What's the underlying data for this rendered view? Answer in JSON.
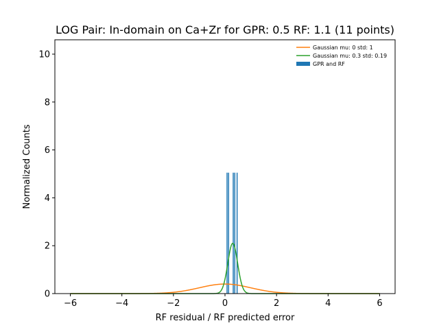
{
  "chart_data": {
    "type": "histogram",
    "title": "LOG Pair: In-domain on Ca+Zr for GPR: 0.5 RF: 1.1 (11 points)",
    "xlabel": "RF residual / RF predicted error",
    "ylabel": "Normalized Counts",
    "xlim": [
      -6.6,
      6.6
    ],
    "ylim": [
      0,
      10.6
    ],
    "xticks": [
      -6,
      -4,
      -2,
      0,
      2,
      4,
      6
    ],
    "yticks": [
      0,
      2,
      4,
      6,
      8,
      10
    ],
    "grid": false,
    "legend_position": "top-right",
    "histogram": {
      "name": "GPR and RF",
      "color": "#1f77b4",
      "bar_width": 0.04,
      "bars": [
        {
          "x": 0.08,
          "height": 5.05
        },
        {
          "x": 0.14,
          "height": 5.05
        },
        {
          "x": 0.32,
          "height": 5.05
        },
        {
          "x": 0.38,
          "height": 5.05
        },
        {
          "x": 0.47,
          "height": 5.05
        }
      ]
    },
    "series": [
      {
        "name": "Gaussian mu: 0 std: 1",
        "color": "#ff7f0e",
        "mu": 0,
        "std": 1,
        "x_range": [
          -6,
          6
        ]
      },
      {
        "name": "Gaussian mu: 0.3 std: 0.19",
        "color": "#2ca02c",
        "mu": 0.3,
        "std": 0.19,
        "x_range": [
          -6,
          6
        ]
      }
    ]
  }
}
